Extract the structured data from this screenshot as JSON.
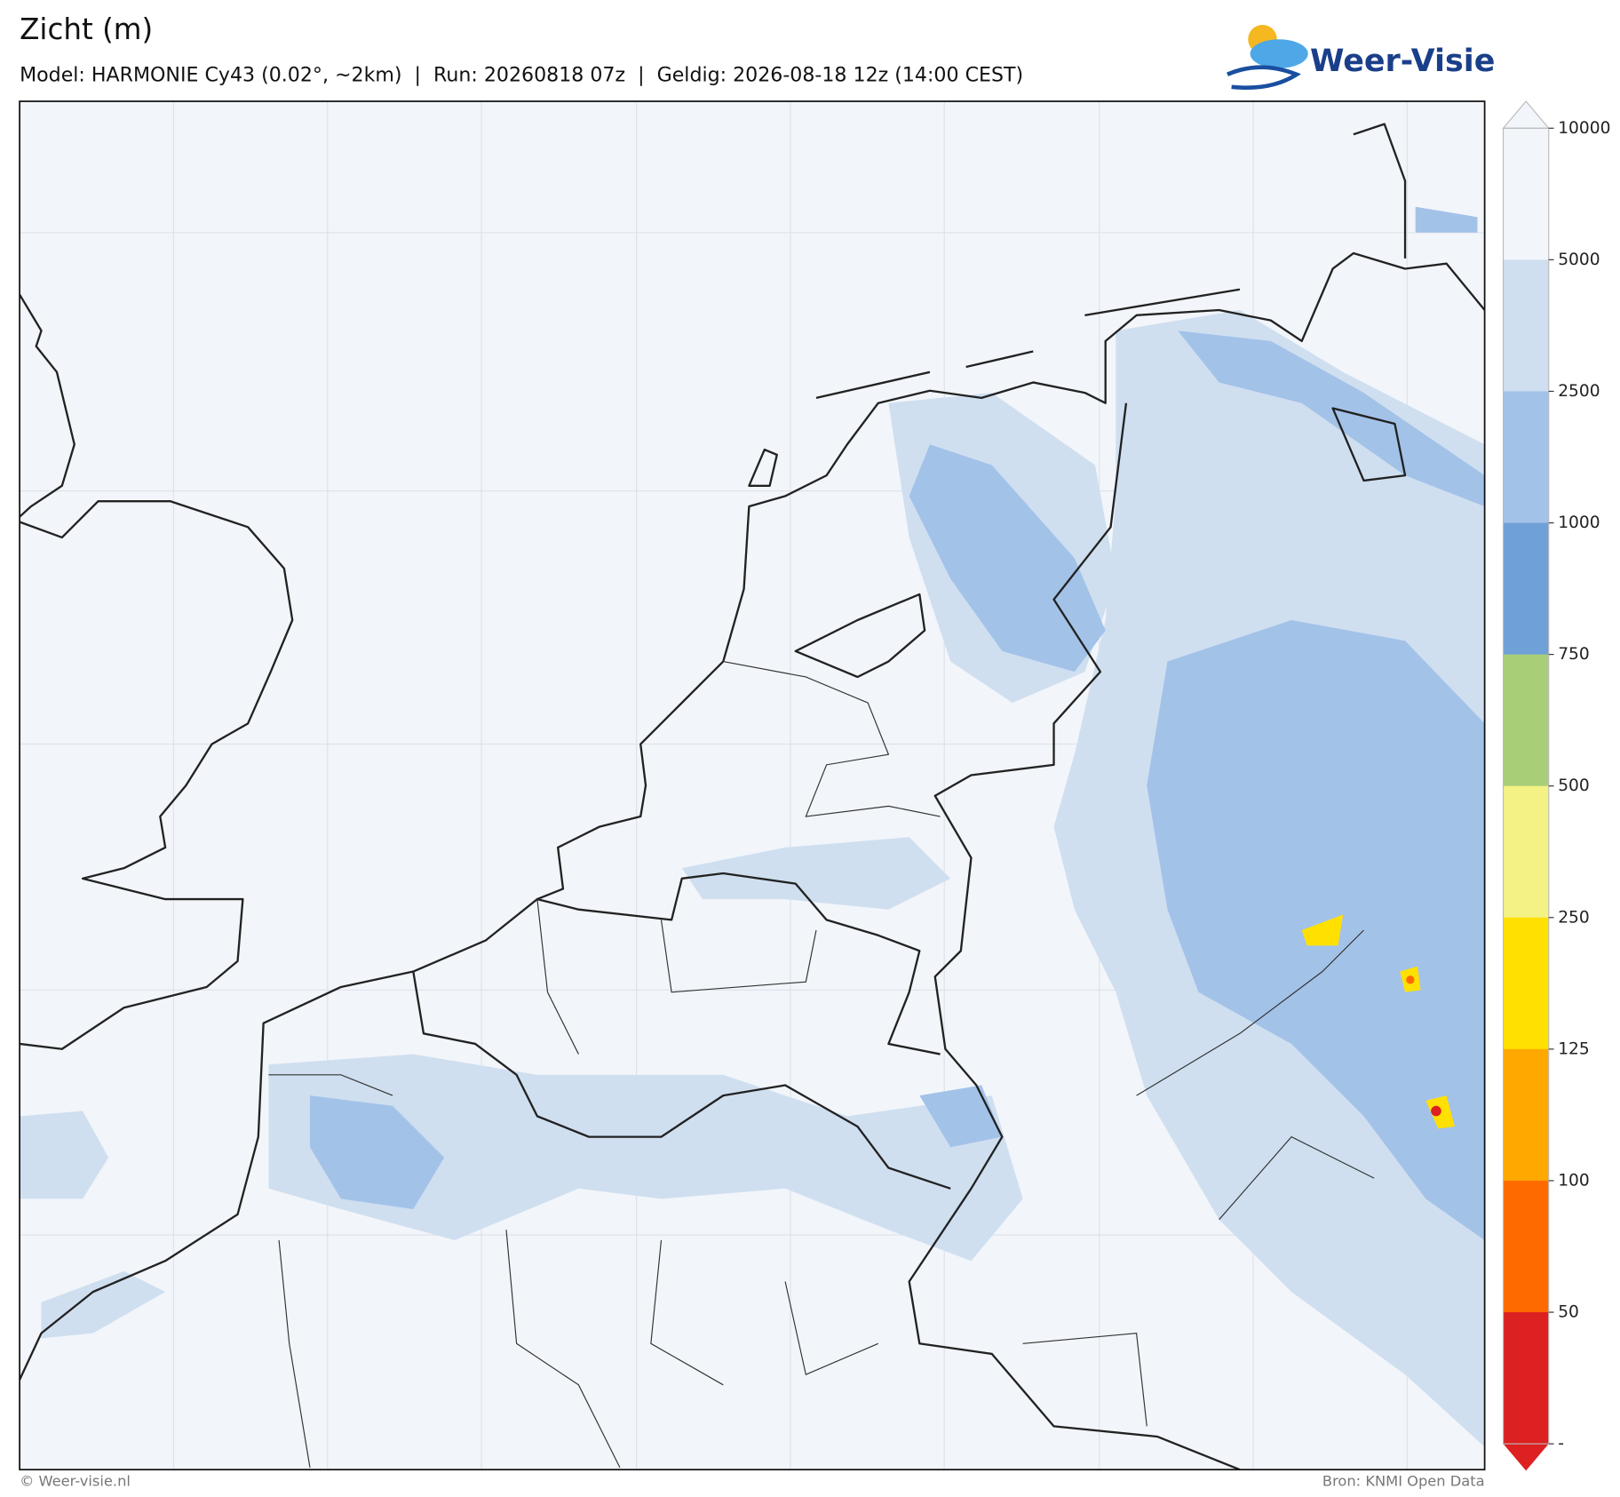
{
  "header": {
    "title": "Zicht (m)",
    "subtitle": "Model: HARMONIE Cy43 (0.02°, ~2km)  |  Run: 20260818 07z  |  Geldig: 2026-08-18 12z (14:00 CEST)"
  },
  "logo": {
    "text": "Weer-Visie"
  },
  "colorbar": {
    "levels": [
      10000,
      5000,
      2500,
      1000,
      750,
      500,
      250,
      125,
      100,
      50
    ],
    "bottom_label": "-",
    "colors": [
      "#f2f5fa",
      "#cfdff0",
      "#a3c2e8",
      "#6fa0d8",
      "#a8cf78",
      "#f4f285",
      "#ffe000",
      "#ffa800",
      "#ff6a00",
      "#dd2020"
    ]
  },
  "footer": {
    "left": "© Weer-visie.nl",
    "right": "Bron: KNMI Open Data"
  }
}
